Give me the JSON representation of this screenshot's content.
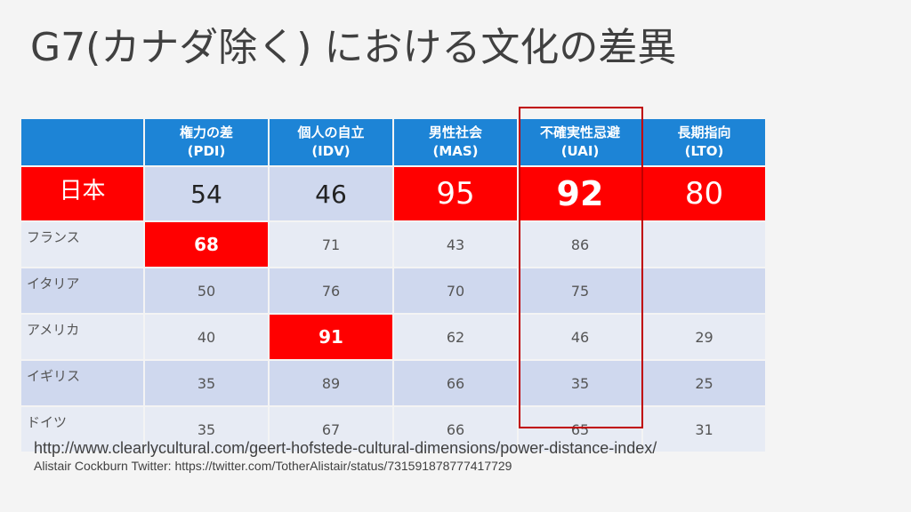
{
  "slide": {
    "title": "G7(カナダ除く) における文化の差異"
  },
  "table": {
    "headers": [
      {
        "line1": "",
        "line2": ""
      },
      {
        "line1": "権力の差",
        "line2": "(PDI)"
      },
      {
        "line1": "個人の自立",
        "line2": "(IDV)"
      },
      {
        "line1": "男性社会",
        "line2": "(MAS)"
      },
      {
        "line1": "不確実性忌避",
        "line2": "(UAI)"
      },
      {
        "line1": "長期指向",
        "line2": "(LTO)"
      }
    ],
    "rows": [
      {
        "country": "日本",
        "values": [
          "54",
          "46",
          "95",
          "92",
          "80"
        ]
      },
      {
        "country": "フランス",
        "values": [
          "68",
          "71",
          "43",
          "86",
          ""
        ]
      },
      {
        "country": "イタリア",
        "values": [
          "50",
          "76",
          "70",
          "75",
          ""
        ]
      },
      {
        "country": "アメリカ",
        "values": [
          "40",
          "91",
          "62",
          "46",
          "29"
        ]
      },
      {
        "country": "イギリス",
        "values": [
          "35",
          "89",
          "66",
          "35",
          "25"
        ]
      },
      {
        "country": "ドイツ",
        "values": [
          "35",
          "67",
          "66",
          "65",
          "31"
        ]
      }
    ],
    "highlight_color": "#ff0000",
    "header_color": "#1d84d6",
    "uai_frame_color": "#c00000"
  },
  "sources": {
    "line1": "http://www.clearlycultural.com/geert-hofstede-cultural-dimensions/power-distance-index/",
    "line2": "Alistair Cockburn Twitter:  https://twitter.com/TotherAlistair/status/731591878777417729"
  }
}
